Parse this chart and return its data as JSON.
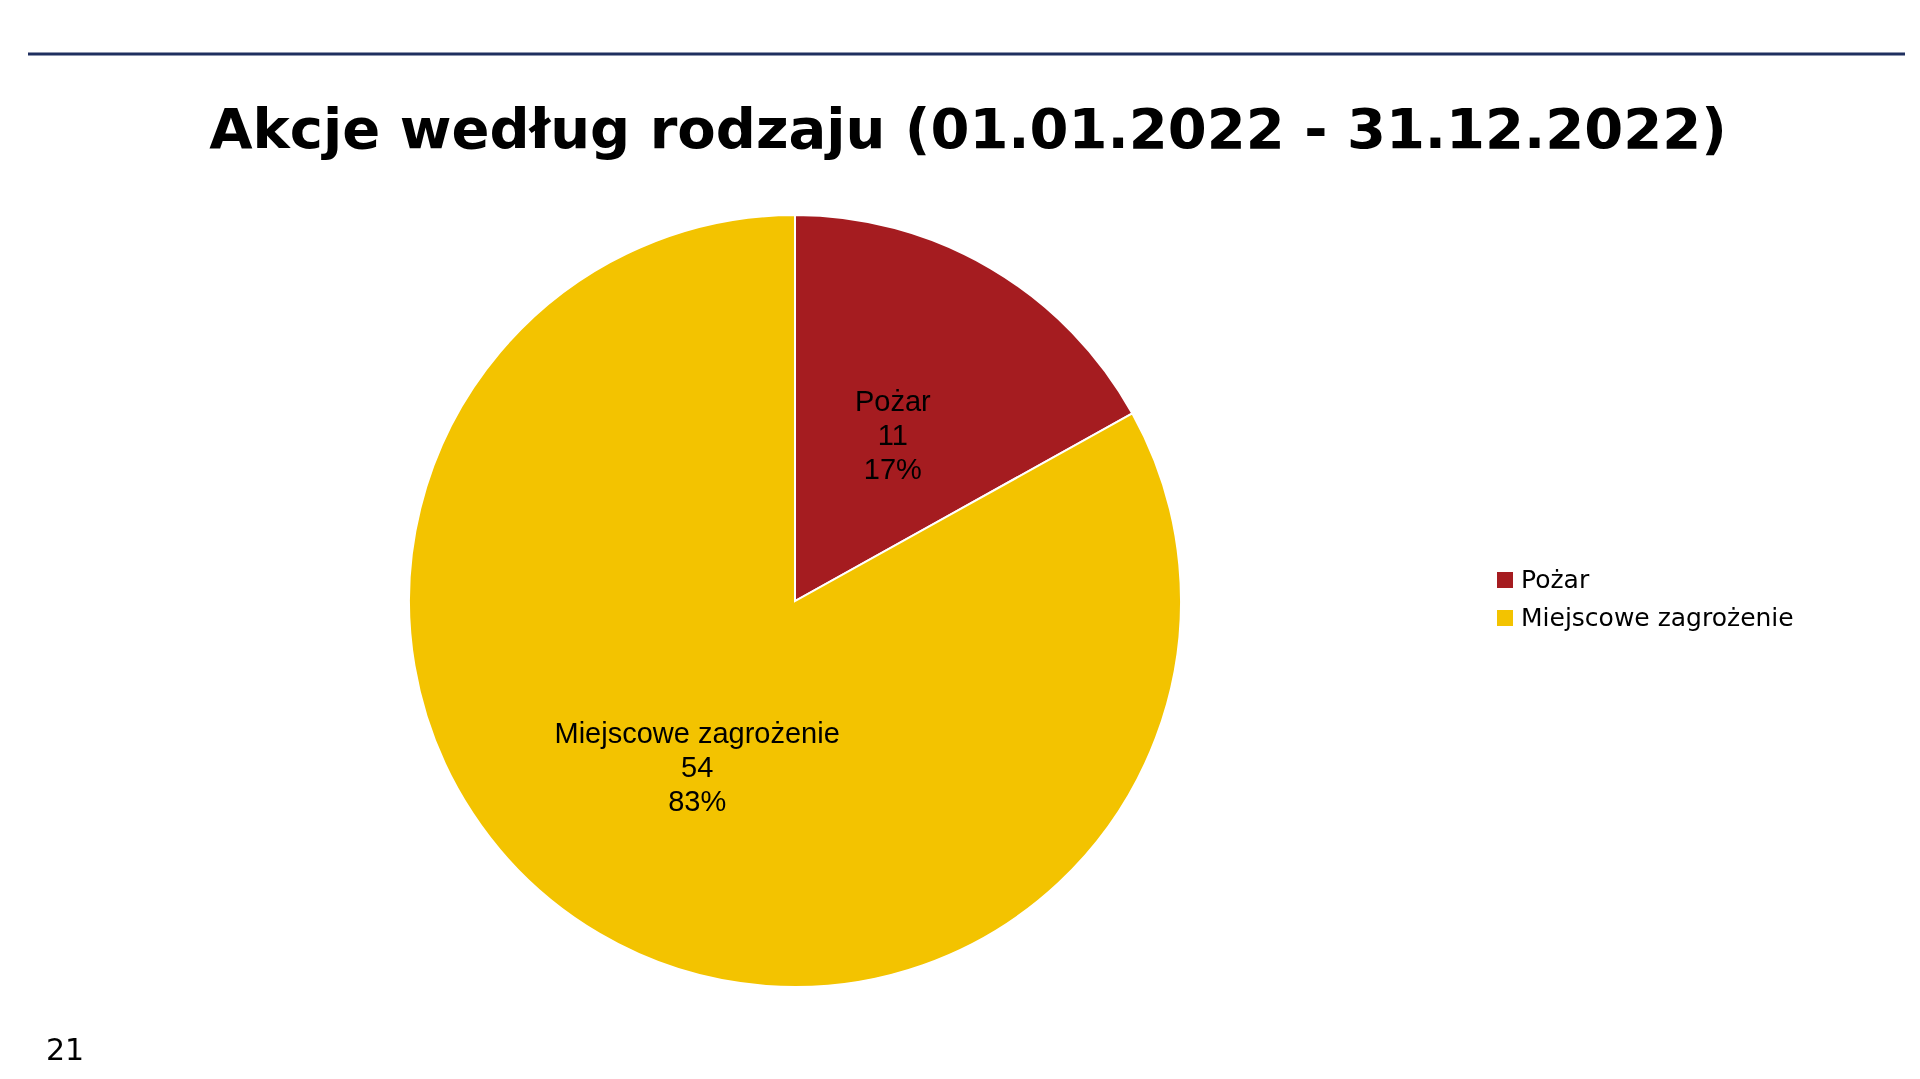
{
  "chart_data": {
    "type": "pie",
    "title": "Akcje według rodzaju (01.01.2022 - 31.12.2022)",
    "categories": [
      "Pożar",
      "Miejscowe zagrożenie"
    ],
    "values": [
      11,
      54
    ],
    "colors": [
      "#a51c20",
      "#f3c300"
    ],
    "value_labels": [
      "11\n17%",
      "54\n83%"
    ],
    "legend": "right",
    "annotations": [
      "21"
    ]
  }
}
